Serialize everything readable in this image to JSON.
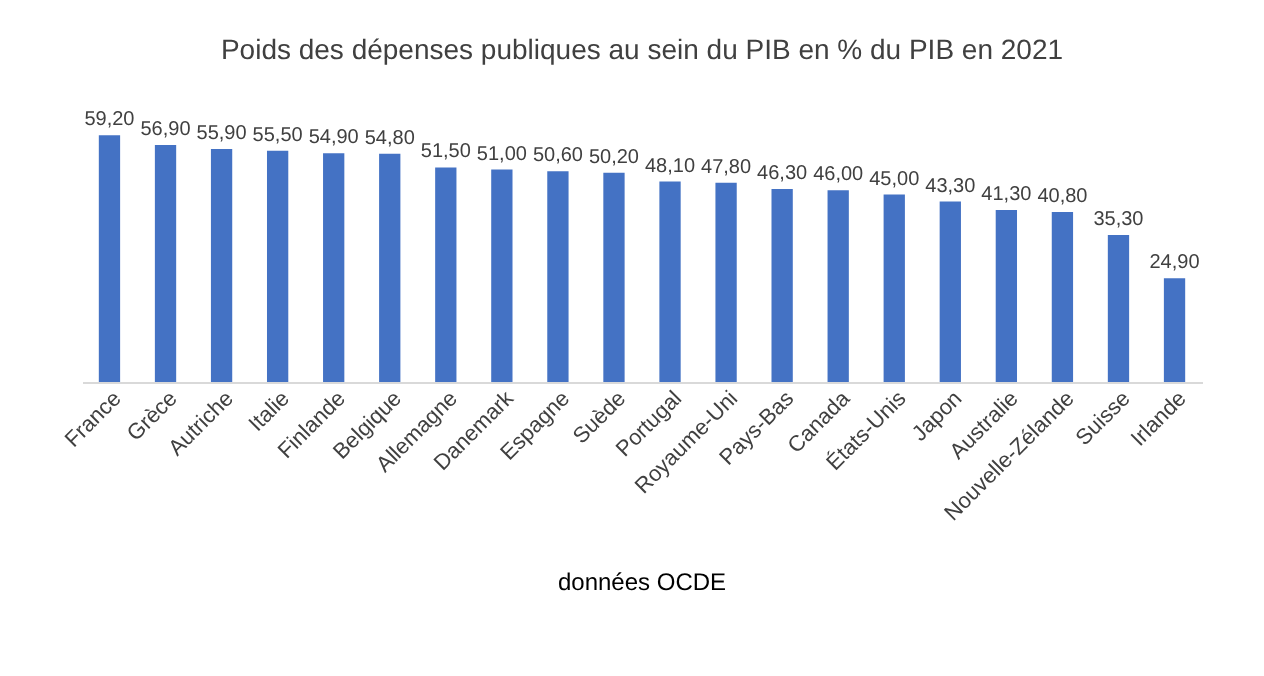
{
  "chart_data": {
    "type": "bar",
    "title": "Poids des dépenses publiques au sein du PIB en % du PIB en 2021",
    "categories": [
      "France",
      "Grèce",
      "Autriche",
      "Italie",
      "Finlande",
      "Belgique",
      "Allemagne",
      "Danemark",
      "Espagne",
      "Suède",
      "Portugal",
      "Royaume-Uni",
      "Pays-Bas",
      "Canada",
      "États-Unis",
      "Japon",
      "Australie",
      "Nouvelle-Zélande",
      "Suisse",
      "Irlande"
    ],
    "values": [
      59.2,
      56.9,
      55.9,
      55.5,
      54.9,
      54.8,
      51.5,
      51.0,
      50.6,
      50.2,
      48.1,
      47.8,
      46.3,
      46.0,
      45.0,
      43.3,
      41.3,
      40.8,
      35.3,
      24.9
    ],
    "value_labels": [
      "59,20",
      "56,90",
      "55,90",
      "55,50",
      "54,90",
      "54,80",
      "51,50",
      "51,00",
      "50,60",
      "50,20",
      "48,10",
      "47,80",
      "46,30",
      "46,00",
      "45,00",
      "43,30",
      "41,30",
      "40,80",
      "35,30",
      "24,90"
    ],
    "color": "#4472c4",
    "tick_labels": "x",
    "annotations": [
      "données OCDE"
    ]
  }
}
